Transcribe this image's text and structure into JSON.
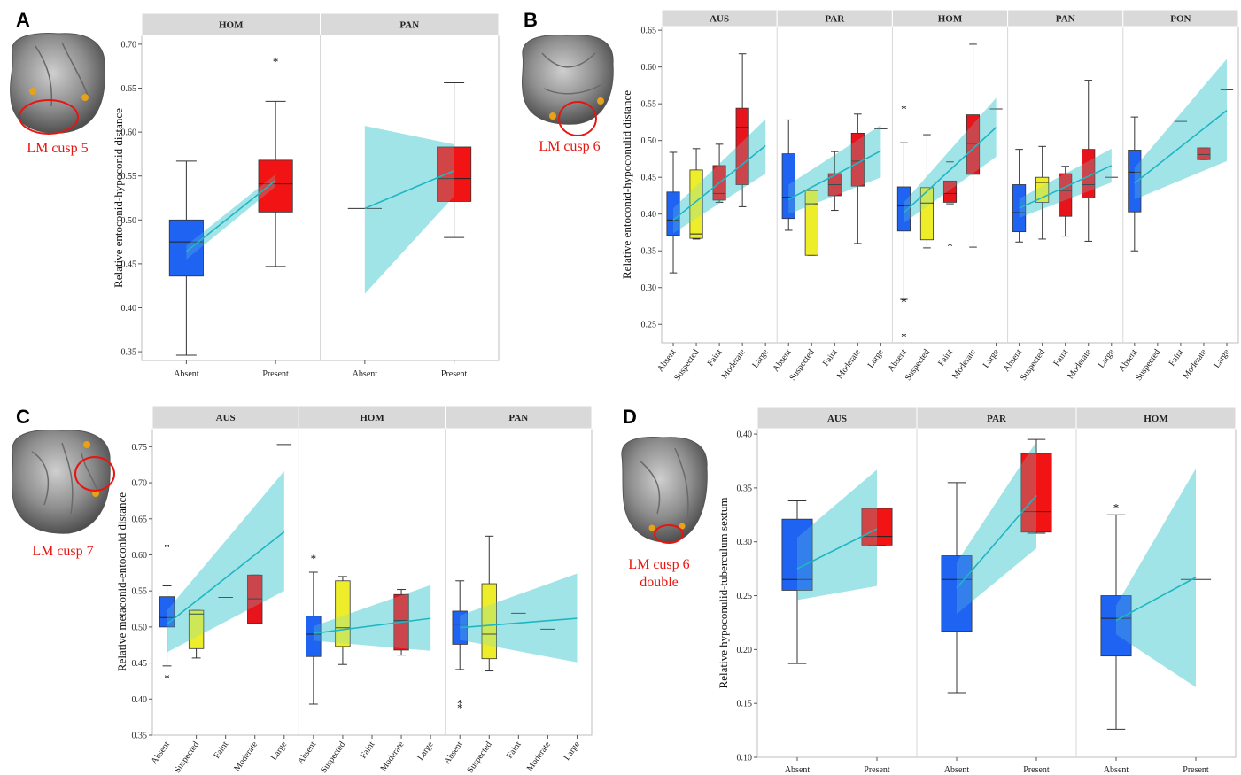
{
  "colors": {
    "absent": "#1f63f2",
    "suspected": "#eded2a",
    "faint": "#e8141c",
    "moderate": "#e8141c",
    "large": "#e8141c",
    "present": "#f21414",
    "band": "#6fd6dc",
    "line": "#1fb6c4",
    "strip": "#d9d9d9",
    "annotation": "#e8140f"
  },
  "panels": [
    {
      "label": "A",
      "cusp_label": [
        "LM cusp 5"
      ]
    },
    {
      "label": "B",
      "cusp_label": [
        "LM cusp 6"
      ]
    },
    {
      "label": "C",
      "cusp_label": [
        "LM cusp 7"
      ]
    },
    {
      "label": "D",
      "cusp_label": [
        "LM cusp 6",
        "double"
      ]
    }
  ],
  "chart_data": [
    {
      "type": "box",
      "panel": "A",
      "ylabel": "Relative entoconid-hypoconid distance",
      "ylim": [
        0.34,
        0.71
      ],
      "yticks": [
        "0.35",
        "0.40",
        "0.45",
        "0.50",
        "0.55",
        "0.60",
        "0.65",
        "0.70"
      ],
      "categories": [
        "Absent",
        "Present"
      ],
      "facets": [
        {
          "name": "HOM",
          "boxes": [
            {
              "category": "Absent",
              "whisker_low": 0.346,
              "q1": 0.436,
              "median": 0.475,
              "q3": 0.5,
              "whisker_high": 0.567,
              "outliers": []
            },
            {
              "category": "Present",
              "whisker_low": 0.447,
              "q1": 0.509,
              "median": 0.541,
              "q3": 0.568,
              "whisker_high": 0.635,
              "outliers": [
                0.682
              ]
            }
          ],
          "trend": [
            0.464,
            0.545
          ],
          "band_low": [
            0.455,
            0.538
          ],
          "band_high": [
            0.471,
            0.552
          ]
        },
        {
          "name": "PAN",
          "boxes": [
            {
              "category": "Absent",
              "whisker_low": 0.513,
              "q1": 0.513,
              "median": 0.513,
              "q3": 0.513,
              "whisker_high": 0.513,
              "outliers": []
            },
            {
              "category": "Present",
              "whisker_low": 0.48,
              "q1": 0.521,
              "median": 0.547,
              "q3": 0.583,
              "whisker_high": 0.656,
              "outliers": []
            }
          ],
          "trend": [
            0.513,
            0.556
          ],
          "band_low": [
            0.416,
            0.527
          ],
          "band_high": [
            0.607,
            0.586
          ]
        }
      ]
    },
    {
      "type": "box",
      "panel": "B",
      "ylabel": "Relative entoconid-hypoconulid distance",
      "ylim": [
        0.225,
        0.655
      ],
      "yticks": [
        "0.25",
        "0.30",
        "0.35",
        "0.40",
        "0.45",
        "0.50",
        "0.55",
        "0.60",
        "0.65"
      ],
      "categories": [
        "Absent",
        "Suspected",
        "Faint",
        "Moderate",
        "Large"
      ],
      "facets": [
        {
          "name": "AUS",
          "boxes": [
            {
              "category": "Absent",
              "whisker_low": 0.32,
              "q1": 0.371,
              "median": 0.392,
              "q3": 0.43,
              "whisker_high": 0.484,
              "outliers": []
            },
            {
              "category": "Suspected",
              "whisker_low": 0.366,
              "q1": 0.367,
              "median": 0.373,
              "q3": 0.46,
              "whisker_high": 0.489,
              "outliers": []
            },
            {
              "category": "Faint",
              "whisker_low": 0.416,
              "q1": 0.419,
              "median": 0.428,
              "q3": 0.466,
              "whisker_high": 0.495,
              "outliers": []
            },
            {
              "category": "Moderate",
              "whisker_low": 0.41,
              "q1": 0.44,
              "median": 0.518,
              "q3": 0.544,
              "whisker_high": 0.618,
              "outliers": []
            }
          ],
          "trend": [
            0.392,
            0.493
          ],
          "band_low": [
            0.374,
            0.455
          ],
          "band_high": [
            0.408,
            0.529
          ]
        },
        {
          "name": "PAR",
          "boxes": [
            {
              "category": "Absent",
              "whisker_low": 0.378,
              "q1": 0.394,
              "median": 0.423,
              "q3": 0.482,
              "whisker_high": 0.528,
              "outliers": []
            },
            {
              "category": "Suspected",
              "whisker_low": 0.344,
              "q1": 0.344,
              "median": 0.414,
              "q3": 0.432,
              "whisker_high": 0.432,
              "outliers": []
            },
            {
              "category": "Faint",
              "whisker_low": 0.405,
              "q1": 0.425,
              "median": 0.44,
              "q3": 0.455,
              "whisker_high": 0.485,
              "outliers": []
            },
            {
              "category": "Moderate",
              "whisker_low": 0.36,
              "q1": 0.438,
              "median": 0.472,
              "q3": 0.51,
              "whisker_high": 0.536,
              "outliers": []
            },
            {
              "category": "Large",
              "whisker_low": 0.516,
              "q1": 0.516,
              "median": 0.516,
              "q3": 0.516,
              "whisker_high": 0.516,
              "outliers": []
            }
          ],
          "trend": [
            0.42,
            0.486
          ],
          "band_low": [
            0.4,
            0.45
          ],
          "band_high": [
            0.44,
            0.521
          ]
        },
        {
          "name": "HOM",
          "boxes": [
            {
              "category": "Absent",
              "whisker_low": 0.284,
              "q1": 0.377,
              "median": 0.411,
              "q3": 0.437,
              "whisker_high": 0.497,
              "outliers": [
                0.545,
                0.282,
                0.235
              ]
            },
            {
              "category": "Suspected",
              "whisker_low": 0.354,
              "q1": 0.365,
              "median": 0.415,
              "q3": 0.436,
              "whisker_high": 0.508,
              "outliers": []
            },
            {
              "category": "Faint",
              "whisker_low": 0.414,
              "q1": 0.416,
              "median": 0.428,
              "q3": 0.445,
              "whisker_high": 0.471,
              "outliers": [
                0.358
              ]
            },
            {
              "category": "Moderate",
              "whisker_low": 0.355,
              "q1": 0.454,
              "median": 0.496,
              "q3": 0.535,
              "whisker_high": 0.631,
              "outliers": []
            },
            {
              "category": "Large",
              "whisker_low": 0.543,
              "q1": 0.543,
              "median": 0.543,
              "q3": 0.543,
              "whisker_high": 0.543,
              "outliers": []
            }
          ],
          "trend": [
            0.402,
            0.518
          ],
          "band_low": [
            0.388,
            0.478
          ],
          "band_high": [
            0.416,
            0.558
          ]
        },
        {
          "name": "PAN",
          "boxes": [
            {
              "category": "Absent",
              "whisker_low": 0.362,
              "q1": 0.376,
              "median": 0.402,
              "q3": 0.44,
              "whisker_high": 0.488,
              "outliers": []
            },
            {
              "category": "Suspected",
              "whisker_low": 0.366,
              "q1": 0.416,
              "median": 0.443,
              "q3": 0.45,
              "whisker_high": 0.492,
              "outliers": []
            },
            {
              "category": "Faint",
              "whisker_low": 0.37,
              "q1": 0.397,
              "median": 0.432,
              "q3": 0.455,
              "whisker_high": 0.465,
              "outliers": []
            },
            {
              "category": "Moderate",
              "whisker_low": 0.363,
              "q1": 0.422,
              "median": 0.44,
              "q3": 0.488,
              "whisker_high": 0.582,
              "outliers": []
            },
            {
              "category": "Large",
              "whisker_low": 0.45,
              "q1": 0.45,
              "median": 0.45,
              "q3": 0.45,
              "whisker_high": 0.45,
              "outliers": []
            }
          ],
          "trend": [
            0.408,
            0.466
          ],
          "band_low": [
            0.395,
            0.443
          ],
          "band_high": [
            0.421,
            0.489
          ]
        },
        {
          "name": "PON",
          "boxes": [
            {
              "category": "Absent",
              "whisker_low": 0.35,
              "q1": 0.403,
              "median": 0.457,
              "q3": 0.487,
              "whisker_high": 0.532,
              "outliers": []
            },
            {
              "category": "Faint",
              "whisker_low": 0.526,
              "q1": 0.526,
              "median": 0.526,
              "q3": 0.526,
              "whisker_high": 0.526,
              "outliers": []
            },
            {
              "category": "Moderate",
              "whisker_low": 0.474,
              "q1": 0.474,
              "median": 0.481,
              "q3": 0.49,
              "whisker_high": 0.49,
              "outliers": []
            },
            {
              "category": "Large",
              "whisker_low": 0.569,
              "q1": 0.569,
              "median": 0.569,
              "q3": 0.569,
              "whisker_high": 0.569,
              "outliers": []
            }
          ],
          "trend": [
            0.442,
            0.541
          ],
          "band_low": [
            0.42,
            0.472
          ],
          "band_high": [
            0.463,
            0.611
          ]
        }
      ]
    },
    {
      "type": "box",
      "panel": "C",
      "ylabel": "Relative metaconid-entoconid distance",
      "ylim": [
        0.35,
        0.775
      ],
      "yticks": [
        "0.35",
        "0.40",
        "0.45",
        "0.50",
        "0.55",
        "0.60",
        "0.65",
        "0.70",
        "0.75"
      ],
      "categories": [
        "Absent",
        "Suspected",
        "Faint",
        "Moderate",
        "Large"
      ],
      "facets": [
        {
          "name": "AUS",
          "boxes": [
            {
              "category": "Absent",
              "whisker_low": 0.446,
              "q1": 0.5,
              "median": 0.513,
              "q3": 0.542,
              "whisker_high": 0.557,
              "outliers": [
                0.612,
                0.431
              ]
            },
            {
              "category": "Suspected",
              "whisker_low": 0.457,
              "q1": 0.47,
              "median": 0.518,
              "q3": 0.523,
              "whisker_high": 0.523,
              "outliers": []
            },
            {
              "category": "Faint",
              "whisker_low": 0.541,
              "q1": 0.541,
              "median": 0.541,
              "q3": 0.541,
              "whisker_high": 0.541,
              "outliers": []
            },
            {
              "category": "Moderate",
              "whisker_low": 0.505,
              "q1": 0.505,
              "median": 0.539,
              "q3": 0.572,
              "whisker_high": 0.572,
              "outliers": []
            },
            {
              "category": "Large",
              "whisker_low": 0.753,
              "q1": 0.753,
              "median": 0.753,
              "q3": 0.753,
              "whisker_high": 0.753,
              "outliers": []
            }
          ],
          "trend": [
            0.504,
            0.632
          ],
          "band_low": [
            0.465,
            0.55
          ],
          "band_high": [
            0.523,
            0.716
          ]
        },
        {
          "name": "HOM",
          "boxes": [
            {
              "category": "Absent",
              "whisker_low": 0.393,
              "q1": 0.459,
              "median": 0.49,
              "q3": 0.515,
              "whisker_high": 0.576,
              "outliers": [
                0.597
              ]
            },
            {
              "category": "Suspected",
              "whisker_low": 0.448,
              "q1": 0.473,
              "median": 0.499,
              "q3": 0.564,
              "whisker_high": 0.57,
              "outliers": []
            },
            {
              "category": "Moderate",
              "whisker_low": 0.461,
              "q1": 0.468,
              "median": 0.509,
              "q3": 0.545,
              "whisker_high": 0.552,
              "outliers": []
            }
          ],
          "trend": [
            0.491,
            0.512
          ],
          "band_low": [
            0.481,
            0.467
          ],
          "band_high": [
            0.501,
            0.558
          ]
        },
        {
          "name": "PAN",
          "boxes": [
            {
              "category": "Absent",
              "whisker_low": 0.441,
              "q1": 0.476,
              "median": 0.504,
              "q3": 0.522,
              "whisker_high": 0.564,
              "outliers": [
                0.396,
                0.39
              ]
            },
            {
              "category": "Suspected",
              "whisker_low": 0.439,
              "q1": 0.456,
              "median": 0.49,
              "q3": 0.56,
              "whisker_high": 0.626,
              "outliers": []
            },
            {
              "category": "Faint",
              "whisker_low": 0.519,
              "q1": 0.519,
              "median": 0.519,
              "q3": 0.519,
              "whisker_high": 0.519,
              "outliers": []
            },
            {
              "category": "Moderate",
              "whisker_low": 0.497,
              "q1": 0.497,
              "median": 0.497,
              "q3": 0.497,
              "whisker_high": 0.497,
              "outliers": []
            }
          ],
          "trend": [
            0.499,
            0.512
          ],
          "band_low": [
            0.482,
            0.451
          ],
          "band_high": [
            0.516,
            0.574
          ]
        }
      ]
    },
    {
      "type": "box",
      "panel": "D",
      "ylabel": "Relative hypoconulid-tuberculum sextum",
      "ylim": [
        0.1,
        0.405
      ],
      "yticks": [
        "0.10",
        "0.15",
        "0.20",
        "0.25",
        "0.30",
        "0.35",
        "0.40"
      ],
      "categories": [
        "Absent",
        "Present"
      ],
      "facets": [
        {
          "name": "AUS",
          "boxes": [
            {
              "category": "Absent",
              "whisker_low": 0.187,
              "q1": 0.255,
              "median": 0.265,
              "q3": 0.321,
              "whisker_high": 0.338,
              "outliers": []
            },
            {
              "category": "Present",
              "whisker_low": 0.297,
              "q1": 0.297,
              "median": 0.305,
              "q3": 0.331,
              "whisker_high": 0.331,
              "outliers": []
            }
          ],
          "trend": [
            0.275,
            0.312
          ],
          "band_low": [
            0.246,
            0.259
          ],
          "band_high": [
            0.304,
            0.367
          ]
        },
        {
          "name": "PAR",
          "boxes": [
            {
              "category": "Absent",
              "whisker_low": 0.16,
              "q1": 0.217,
              "median": 0.265,
              "q3": 0.287,
              "whisker_high": 0.355,
              "outliers": []
            },
            {
              "category": "Present",
              "whisker_low": 0.308,
              "q1": 0.309,
              "median": 0.328,
              "q3": 0.382,
              "whisker_high": 0.395,
              "outliers": []
            }
          ],
          "trend": [
            0.257,
            0.343
          ],
          "band_low": [
            0.233,
            0.294
          ],
          "band_high": [
            0.281,
            0.393
          ]
        },
        {
          "name": "HOM",
          "boxes": [
            {
              "category": "Absent",
              "whisker_low": 0.126,
              "q1": 0.194,
              "median": 0.229,
              "q3": 0.25,
              "whisker_high": 0.325,
              "outliers": [
                0.333
              ]
            },
            {
              "category": "Present",
              "whisker_low": 0.265,
              "q1": 0.265,
              "median": 0.265,
              "q3": 0.265,
              "whisker_high": 0.265,
              "outliers": []
            }
          ],
          "trend": [
            0.227,
            0.267
          ],
          "band_low": [
            0.214,
            0.165
          ],
          "band_high": [
            0.241,
            0.368
          ]
        }
      ]
    }
  ]
}
